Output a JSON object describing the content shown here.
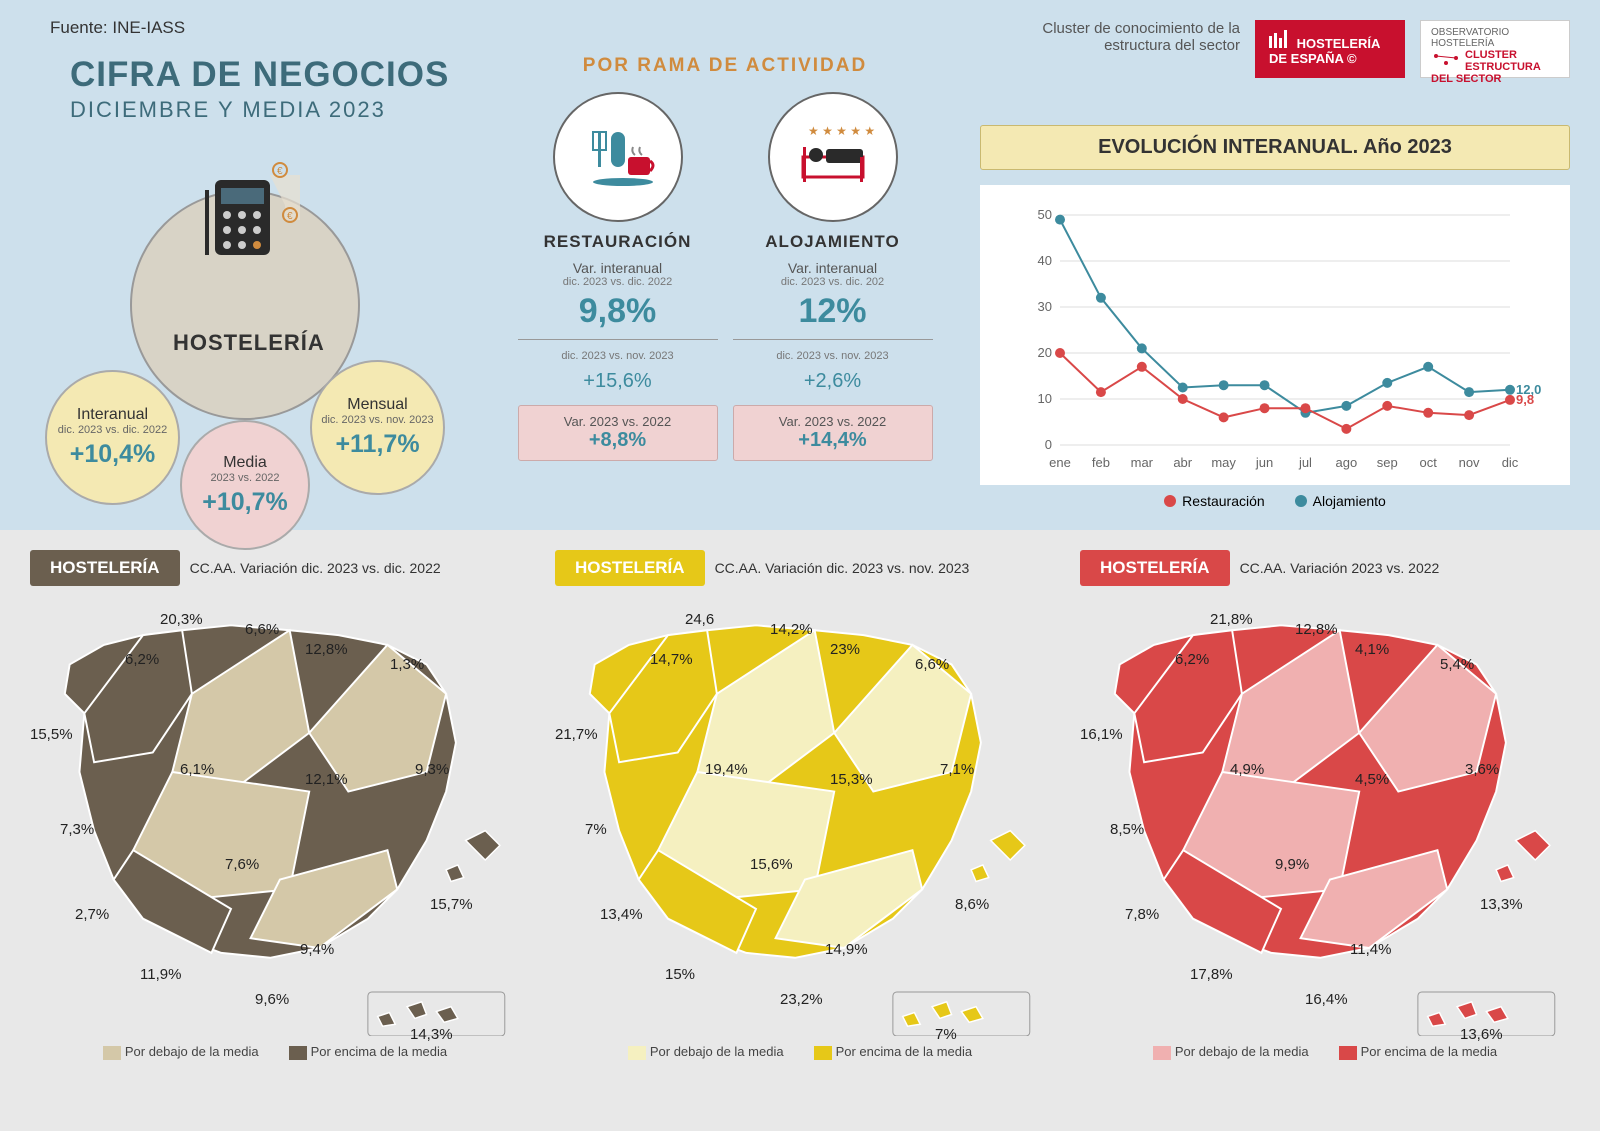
{
  "source": "Fuente: INE-IASS",
  "header": {
    "cluster_text": "Cluster de conocimiento de la estructura del sector",
    "logo_main_line1": "HOSTELERÍA",
    "logo_main_line2": "DE ESPAÑA",
    "logo_obs_top": "OBSERVATORIO HOSTELERÍA",
    "logo_obs_line1": "CLUSTER",
    "logo_obs_line2": "ESTRUCTURA",
    "logo_obs_line3": "DEL SECTOR"
  },
  "title": {
    "main": "CIFRA DE NEGOCIOS",
    "sub": "DICIEMBRE Y MEDIA 2023"
  },
  "hosteleria": {
    "label": "HOSTELERÍA",
    "bubble1": {
      "label": "Interanual",
      "small": "dic. 2023 vs. dic. 2022",
      "value": "+10,4%"
    },
    "bubble2": {
      "label": "Media",
      "small": "2023 vs. 2022",
      "value": "+10,7%"
    },
    "bubble3": {
      "label": "Mensual",
      "small": "dic. 2023 vs. nov. 2023",
      "value": "+11,7%"
    }
  },
  "rama": {
    "title": "POR RAMA DE ACTIVIDAD",
    "restauracion": {
      "name": "RESTAURACIÓN",
      "sub1": "Var. interanual",
      "small1": "dic. 2023 vs. dic. 2022",
      "big_val": "9,8%",
      "small2": "dic. 2023 vs. nov. 2023",
      "med_val": "+15,6%",
      "box_sub": "Var. 2023 vs. 2022",
      "box_val": "+8,8%",
      "icon_color": "#3d8b9e"
    },
    "alojamiento": {
      "name": "ALOJAMIENTO",
      "sub1": "Var. interanual",
      "small1": "dic. 2023 vs. dic. 202",
      "big_val": "12%",
      "small2": "dic. 2023 vs. nov. 2023",
      "med_val": "+2,6%",
      "box_sub": "Var. 2023 vs. 2022",
      "box_val": "+14,4%",
      "icon_color": "#c8102e"
    }
  },
  "evolution": {
    "title": "EVOLUCIÓN INTERANUAL. Año 2023",
    "months": [
      "ene",
      "feb",
      "mar",
      "abr",
      "may",
      "jun",
      "jul",
      "ago",
      "sep",
      "oct",
      "nov",
      "dic"
    ],
    "yticks": [
      0,
      10,
      20,
      30,
      40,
      50
    ],
    "ylim": [
      0,
      50
    ],
    "series": {
      "restauracion": {
        "label": "Restauración",
        "color": "#d94848",
        "values": [
          20,
          11.5,
          17,
          10,
          6,
          8,
          8,
          3.5,
          8.5,
          7,
          6.5,
          9.8
        ],
        "end_label": "9,8"
      },
      "alojamiento": {
        "label": "Alojamiento",
        "color": "#3d8b9e",
        "values": [
          49,
          32,
          21,
          12.5,
          13,
          13,
          7,
          8.5,
          13.5,
          17,
          11.5,
          12
        ],
        "end_label": "12,0"
      }
    },
    "grid_color": "#ddd",
    "axis_color": "#888",
    "font_size": 13
  },
  "maps": {
    "legend_below": "Por debajo de la media",
    "legend_above": "Por encima de la media",
    "map1": {
      "badge": "HOSTELERÍA",
      "badge_bg": "#6b5f4f",
      "sub": "CC.AA. Variación dic. 2023 vs. dic. 2022",
      "color_low": "#d4c8a8",
      "color_high": "#6b5f4f",
      "labels": {
        "a": "20,3%",
        "b": "6,2%",
        "c": "6,6%",
        "d": "12,8%",
        "e": "1,3%",
        "f": "15,5%",
        "g": "6,1%",
        "h": "12,1%",
        "i": "9,3%",
        "j": "7,3%",
        "k": "7,6%",
        "l": "2,7%",
        "m": "15,7%",
        "n": "11,9%",
        "o": "9,4%",
        "p": "9,6%",
        "q": "14,3%"
      }
    },
    "map2": {
      "badge": "HOSTELERÍA",
      "badge_bg": "#e6c818",
      "sub": "CC.AA. Variación  dic. 2023 vs. nov. 2023",
      "color_low": "#f5f0c0",
      "color_high": "#e6c818",
      "labels": {
        "a": "24,6",
        "b": "14,7%",
        "c": "14,2%",
        "d": "23%",
        "e": "6,6%",
        "f": "21,7%",
        "g": "19,4%",
        "h": "15,3%",
        "i": "7,1%",
        "j": "7%",
        "k": "15,6%",
        "l": "13,4%",
        "m": "8,6%",
        "n": "15%",
        "o": "14,9%",
        "p": "23,2%",
        "q": "7%"
      }
    },
    "map3": {
      "badge": "HOSTELERÍA",
      "badge_bg": "#d94848",
      "sub": "CC.AA. Variación 2023 vs. 2022",
      "color_low": "#f0b0b0",
      "color_high": "#d94848",
      "labels": {
        "a": "21,8%",
        "b": "6,2%",
        "c": "12,8%",
        "d": "4,1%",
        "e": "5,4%",
        "f": "16,1%",
        "g": "4,9%",
        "h": "4,5%",
        "i": "3,6%",
        "j": "8,5%",
        "k": "9,9%",
        "l": "7,8%",
        "m": "13,3%",
        "n": "17,8%",
        "o": "11,4%",
        "p": "16,4%",
        "q": "13,6%"
      }
    },
    "label_positions": {
      "a": [
        130,
        15
      ],
      "b": [
        95,
        55
      ],
      "c": [
        215,
        25
      ],
      "d": [
        275,
        45
      ],
      "e": [
        360,
        60
      ],
      "f": [
        0,
        130
      ],
      "g": [
        150,
        165
      ],
      "h": [
        275,
        175
      ],
      "i": [
        385,
        165
      ],
      "j": [
        30,
        225
      ],
      "k": [
        195,
        260
      ],
      "l": [
        45,
        310
      ],
      "m": [
        400,
        300
      ],
      "n": [
        110,
        370
      ],
      "o": [
        270,
        345
      ],
      "p": [
        225,
        395
      ],
      "q": [
        380,
        430
      ]
    }
  },
  "colors": {
    "teal": "#3d8b9e",
    "bg_top": "#cde0ec",
    "bg_bottom": "#e8e8e8",
    "yellow_box": "#f4e9b3",
    "pink_box": "#f0d2d2"
  }
}
